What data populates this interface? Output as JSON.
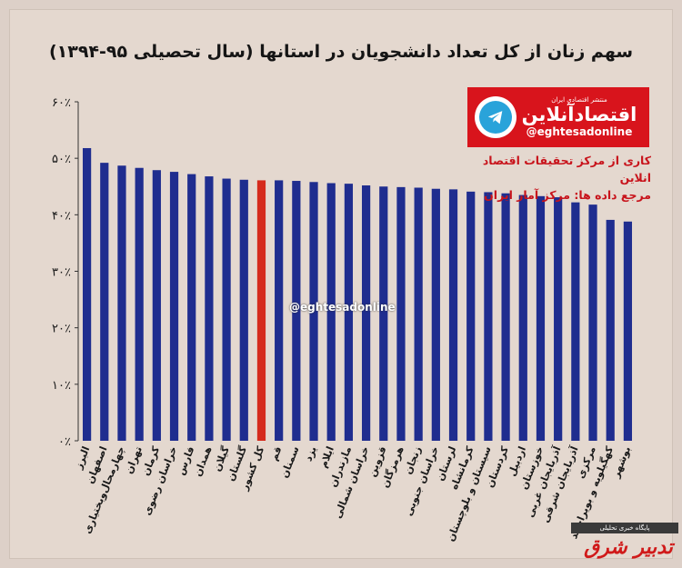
{
  "header": {
    "title": "سهم زنان از کل تعداد دانشجویان در استانها (سال تحصیلی ۹۵-۱۳۹۴)"
  },
  "branding": {
    "tagline": "منتشر اقتصادی ایران",
    "name": "اقتصادآنلاین",
    "handle": "@eghtesadonline",
    "watermark": "@eghtesadonline",
    "telegram_color": "#29a3da",
    "brand_color": "#d8141c"
  },
  "source": {
    "line1": "کاری از مرکز تحقیقات اقتصاد انلاین",
    "line2": "مرجع داده ها: مرکز آمار ایران"
  },
  "corner": {
    "badge": "پایگاه خبری تحلیلی",
    "logo": "تدبیر شرق"
  },
  "colors": {
    "bar": "#1f2d8f",
    "highlight": "#d52a1c"
  },
  "chart_data": {
    "type": "bar",
    "title": "سهم زنان از کل تعداد دانشجویان در استانها (سال تحصیلی ۹۵-۱۳۹۴)",
    "xlabel": "",
    "ylabel": "",
    "ylim": [
      0,
      60
    ],
    "yticks": [
      0,
      10,
      20,
      30,
      40,
      50,
      60
    ],
    "ytick_labels": [
      "۰٪",
      "۱۰٪",
      "۲۰٪",
      "۳۰٪",
      "۴۰٪",
      "۵۰٪",
      "۶۰٪"
    ],
    "grid": false,
    "highlight_category": "کل کشور",
    "categories": [
      "البرز",
      "اصفهان",
      "چهارمحال‌وبختیاری",
      "تهران",
      "کرمان",
      "خراسان رضوی",
      "فارس",
      "همدان",
      "گیلان",
      "گلستان",
      "کل کشور",
      "قم",
      "سمنان",
      "یزد",
      "ایلام",
      "مازندران",
      "خراسان شمالی",
      "قزوین",
      "هرمزگان",
      "زنجان",
      "خراسان جنوبی",
      "لرستان",
      "کرمانشاه",
      "سیستان و بلوچستان",
      "کردستان",
      "اردبیل",
      "خوزستان",
      "آذربایجان غربی",
      "آذربایجان شرقی",
      "مرکزی",
      "کهگیلویه و بویراحمد",
      "بوشهر"
    ],
    "values": [
      51.8,
      49.2,
      48.7,
      48.3,
      47.9,
      47.6,
      47.2,
      46.8,
      46.4,
      46.2,
      46.1,
      46.1,
      46.0,
      45.8,
      45.6,
      45.5,
      45.2,
      45.0,
      44.9,
      44.8,
      44.6,
      44.5,
      44.1,
      44.0,
      43.8,
      43.5,
      43.3,
      43.1,
      42.2,
      41.8,
      39.1,
      38.8
    ]
  }
}
